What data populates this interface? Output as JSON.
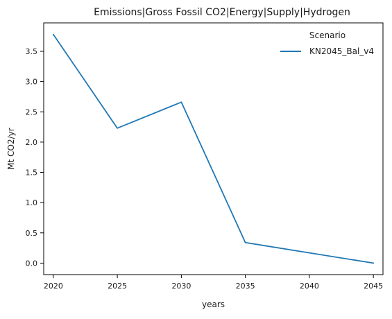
{
  "chart_data": {
    "type": "line",
    "title": "Emissions|Gross Fossil CO2|Energy|Supply|Hydrogen",
    "xlabel": "years",
    "ylabel": "Mt CO2/yr",
    "x": [
      2020,
      2025,
      2030,
      2035,
      2040,
      2045
    ],
    "xticks": [
      "2020",
      "2025",
      "2030",
      "2035",
      "2040",
      "2045"
    ],
    "yticks": [
      "0.0",
      "0.5",
      "1.0",
      "1.5",
      "2.0",
      "2.5",
      "3.0",
      "3.5"
    ],
    "xlim": [
      2019.25,
      2045.75
    ],
    "ylim": [
      -0.19,
      3.97
    ],
    "grid": false,
    "legend": {
      "title": "Scenario",
      "placement": "top-right"
    },
    "series": [
      {
        "name": "KN2045_Bal_v4",
        "color": "#1f77b4",
        "values": [
          3.78,
          2.23,
          2.66,
          0.34,
          0.17,
          0.0
        ]
      }
    ]
  }
}
